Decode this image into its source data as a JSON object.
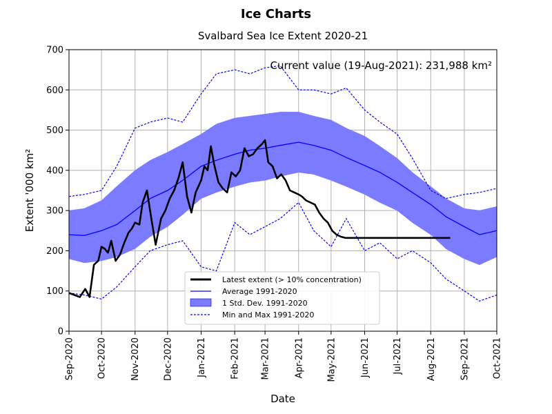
{
  "chart_data": {
    "type": "line",
    "title": "Ice Charts",
    "subtitle": "Svalbard Sea Ice Extent 2020-21",
    "xlabel": "Date",
    "ylabel": "Extent '000 km²",
    "xlim": [
      "2020-09-01",
      "2021-10-01"
    ],
    "ylim": [
      0,
      700
    ],
    "y_ticks": [
      "0",
      "100",
      "200",
      "300",
      "400",
      "500",
      "600",
      "700"
    ],
    "x_ticks": [
      "Sep-2020",
      "Oct-2020",
      "Nov-2020",
      "Dec-2020",
      "Jan-2021",
      "Feb-2021",
      "Mar-2021",
      "Apr-2021",
      "May-2021",
      "Jun-2021",
      "Jul-2021",
      "Aug-2021",
      "Sep-2021",
      "Oct-2021"
    ],
    "grid": true,
    "annotation": "Current value (19-Aug-2021): 231,988 km²",
    "legend_position": "lower-center",
    "legend": [
      "Latest extent (> 10% concentration)",
      "Average 1991-2020",
      "1 Std. Dev. 1991-2020",
      "Min and Max 1991-2020"
    ],
    "colors": {
      "latest": "#000000",
      "average": "#0000ff",
      "band": "#7b7bff",
      "minmax": "#0000ff"
    },
    "series": [
      {
        "name": "Latest extent (> 10% concentration)",
        "x": [
          "2020-09-01",
          "2020-09-06",
          "2020-09-11",
          "2020-09-16",
          "2020-09-20",
          "2020-09-24",
          "2020-09-28",
          "2020-10-01",
          "2020-10-04",
          "2020-10-07",
          "2020-10-10",
          "2020-10-14",
          "2020-10-18",
          "2020-10-22",
          "2020-10-26",
          "2020-10-29",
          "2020-11-01",
          "2020-11-05",
          "2020-11-08",
          "2020-11-12",
          "2020-11-16",
          "2020-11-20",
          "2020-11-25",
          "2020-11-29",
          "2020-12-03",
          "2020-12-07",
          "2020-12-11",
          "2020-12-15",
          "2020-12-19",
          "2020-12-23",
          "2020-12-27",
          "2021-01-01",
          "2021-01-04",
          "2021-01-07",
          "2021-01-10",
          "2021-01-13",
          "2021-01-17",
          "2021-01-21",
          "2021-01-25",
          "2021-01-29",
          "2021-02-02",
          "2021-02-06",
          "2021-02-10",
          "2021-02-14",
          "2021-02-18",
          "2021-02-22",
          "2021-02-26",
          "2021-03-01",
          "2021-03-04",
          "2021-03-08",
          "2021-03-12",
          "2021-03-16",
          "2021-03-20",
          "2021-03-24",
          "2021-03-28",
          "2021-04-01",
          "2021-04-04",
          "2021-04-08",
          "2021-04-12",
          "2021-04-16",
          "2021-04-20",
          "2021-04-24",
          "2021-04-28",
          "2021-05-02",
          "2021-05-06",
          "2021-05-10",
          "2021-05-14",
          "2021-05-18",
          "2021-05-22",
          "2021-05-26",
          "2021-05-30",
          "2021-06-03",
          "2021-06-07",
          "2021-06-11",
          "2021-06-15",
          "2021-06-19",
          "2021-06-23",
          "2021-06-27",
          "2021-07-01",
          "2021-07-05",
          "2021-07-10",
          "2021-07-15",
          "2021-07-20",
          "2021-07-25",
          "2021-07-30",
          "2021-08-04",
          "2021-08-09",
          "2021-08-14",
          "2021-08-19"
        ],
        "values": [
          95,
          90,
          85,
          105,
          85,
          165,
          175,
          210,
          205,
          195,
          225,
          175,
          190,
          220,
          245,
          255,
          270,
          265,
          320,
          350,
          280,
          215,
          280,
          300,
          330,
          350,
          380,
          420,
          335,
          295,
          345,
          375,
          410,
          400,
          460,
          415,
          370,
          355,
          345,
          395,
          385,
          400,
          455,
          435,
          440,
          455,
          465,
          475,
          420,
          410,
          380,
          390,
          375,
          350,
          345,
          340,
          335,
          325,
          320,
          315,
          295,
          280,
          270,
          250,
          240,
          235,
          232,
          232,
          232,
          232,
          232,
          232,
          232,
          232,
          232,
          232,
          232,
          232,
          232,
          232,
          232,
          232,
          232,
          232,
          232,
          232,
          232,
          232,
          232
        ]
      },
      {
        "name": "Average 1991-2020",
        "x": [
          "2020-09-01",
          "2020-09-15",
          "2020-10-01",
          "2020-10-15",
          "2020-11-01",
          "2020-11-15",
          "2020-12-01",
          "2020-12-15",
          "2021-01-01",
          "2021-01-15",
          "2021-02-01",
          "2021-02-15",
          "2021-03-01",
          "2021-03-15",
          "2021-04-01",
          "2021-04-15",
          "2021-05-01",
          "2021-05-15",
          "2021-06-01",
          "2021-06-15",
          "2021-07-01",
          "2021-07-15",
          "2021-08-01",
          "2021-08-15",
          "2021-09-01",
          "2021-09-15",
          "2021-10-01"
        ],
        "values": [
          240,
          238,
          250,
          265,
          300,
          330,
          350,
          375,
          410,
          425,
          440,
          450,
          455,
          462,
          470,
          462,
          450,
          432,
          412,
          395,
          370,
          345,
          315,
          285,
          260,
          240,
          250
        ]
      },
      {
        "name": "1 Std. Dev. 1991-2020",
        "x": [
          "2020-09-01",
          "2020-09-15",
          "2020-10-01",
          "2020-10-15",
          "2020-11-01",
          "2020-11-15",
          "2020-12-01",
          "2020-12-15",
          "2021-01-01",
          "2021-01-15",
          "2021-02-01",
          "2021-02-15",
          "2021-03-01",
          "2021-03-15",
          "2021-04-01",
          "2021-04-15",
          "2021-05-01",
          "2021-05-15",
          "2021-06-01",
          "2021-06-15",
          "2021-07-01",
          "2021-07-15",
          "2021-08-01",
          "2021-08-15",
          "2021-09-01",
          "2021-09-15",
          "2021-10-01"
        ],
        "upper": [
          300,
          305,
          325,
          360,
          400,
          425,
          445,
          465,
          490,
          515,
          530,
          535,
          540,
          545,
          545,
          535,
          525,
          505,
          485,
          460,
          430,
          395,
          360,
          330,
          305,
          300,
          310
        ],
        "lower": [
          180,
          170,
          175,
          185,
          205,
          235,
          260,
          290,
          330,
          345,
          360,
          370,
          375,
          385,
          395,
          390,
          375,
          360,
          340,
          320,
          300,
          270,
          240,
          205,
          180,
          165,
          185
        ]
      },
      {
        "name": "Min and Max 1991-2020 (max)",
        "x": [
          "2020-09-01",
          "2020-09-15",
          "2020-10-01",
          "2020-10-15",
          "2020-11-01",
          "2020-11-15",
          "2020-12-01",
          "2020-12-15",
          "2021-01-01",
          "2021-01-15",
          "2021-02-01",
          "2021-02-15",
          "2021-03-01",
          "2021-03-15",
          "2021-04-01",
          "2021-04-15",
          "2021-05-01",
          "2021-05-15",
          "2021-06-01",
          "2021-06-15",
          "2021-07-01",
          "2021-07-15",
          "2021-08-01",
          "2021-08-15",
          "2021-09-01",
          "2021-09-15",
          "2021-10-01"
        ],
        "values": [
          335,
          340,
          350,
          410,
          505,
          520,
          530,
          520,
          590,
          640,
          650,
          640,
          655,
          660,
          600,
          600,
          590,
          605,
          550,
          520,
          490,
          430,
          350,
          330,
          340,
          345,
          355
        ]
      },
      {
        "name": "Min and Max 1991-2020 (min)",
        "x": [
          "2020-09-01",
          "2020-09-15",
          "2020-10-01",
          "2020-10-15",
          "2020-11-01",
          "2020-11-15",
          "2020-12-01",
          "2020-12-15",
          "2021-01-01",
          "2021-01-15",
          "2021-02-01",
          "2021-02-15",
          "2021-03-01",
          "2021-03-15",
          "2021-04-01",
          "2021-04-15",
          "2021-05-01",
          "2021-05-15",
          "2021-06-01",
          "2021-06-15",
          "2021-07-01",
          "2021-07-15",
          "2021-08-01",
          "2021-08-15",
          "2021-09-01",
          "2021-09-15",
          "2021-10-01"
        ],
        "values": [
          95,
          90,
          80,
          110,
          160,
          200,
          215,
          225,
          160,
          150,
          270,
          240,
          260,
          280,
          320,
          250,
          210,
          280,
          200,
          220,
          180,
          200,
          170,
          130,
          100,
          75,
          90
        ]
      }
    ]
  }
}
